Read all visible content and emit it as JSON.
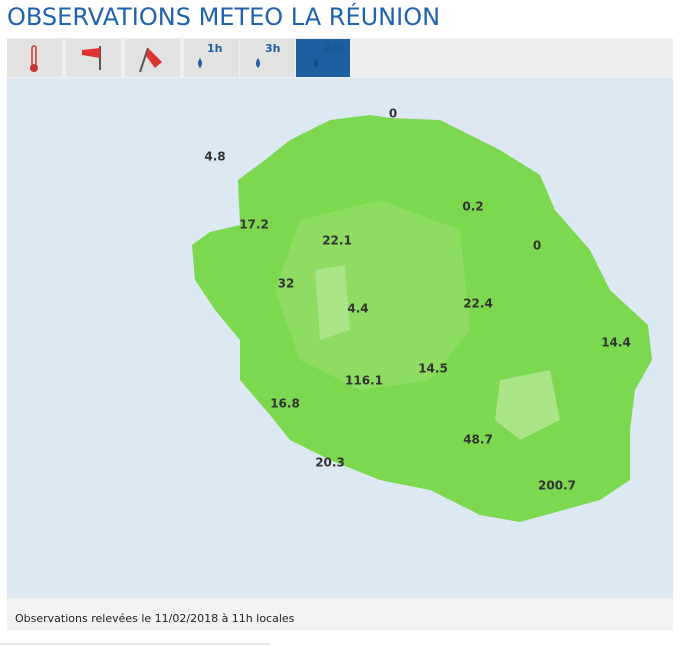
{
  "header": {
    "title": "OBSERVATIONS METEO LA RÉUNION"
  },
  "tabs": [
    "1h",
    "3h",
    "24h"
  ],
  "observations": [
    0,
    4.8,
    17.2,
    22.1,
    0.2,
    0,
    32,
    4.4,
    22.4,
    14.4,
    116.1,
    14.5,
    16.8,
    48.7,
    20.3,
    200.7
  ],
  "footer": "Observations relevées le 11/02/2018 à 11h locales"
}
